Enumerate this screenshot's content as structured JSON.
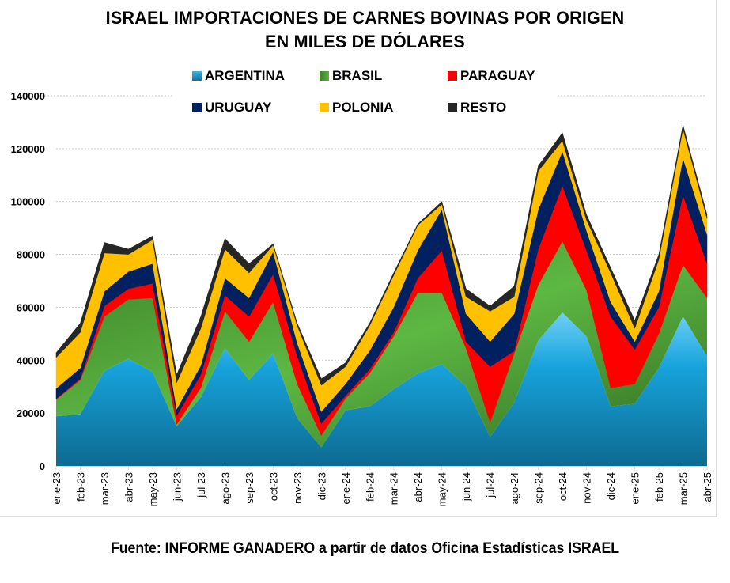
{
  "chart_data": {
    "type": "area",
    "stacked": true,
    "title": "ISRAEL IMPORTACIONES DE CARNES BOVINAS POR ORIGEN",
    "subtitle": "EN MILES DE DÓLARES",
    "xlabel": "",
    "ylabel": "",
    "ylim": [
      0,
      140000
    ],
    "yticks": [
      0,
      20000,
      40000,
      60000,
      80000,
      100000,
      120000,
      140000
    ],
    "ytick_labels": [
      "0",
      "20000",
      "40000",
      "60000",
      "80000",
      "100000",
      "120000",
      "140000"
    ],
    "grid": true,
    "legend_position": "top",
    "categories": [
      "ene-23",
      "feb-23",
      "mar-23",
      "abr-23",
      "may-23",
      "jun-23",
      "jul-23",
      "ago-23",
      "sep-23",
      "oct-23",
      "nov-23",
      "dic-23",
      "ene-24",
      "feb-24",
      "mar-24",
      "abr-24",
      "may-24",
      "jun-24",
      "jul-24",
      "ago-24",
      "sep-24",
      "oct-24",
      "nov-24",
      "dic-24",
      "ene-25",
      "feb-25",
      "mar-25",
      "abr-25"
    ],
    "series": [
      {
        "name": "ARGENTINA",
        "color": "#1ba1d9",
        "values": [
          18800,
          19500,
          36000,
          40500,
          35500,
          15000,
          26000,
          44500,
          32500,
          42500,
          18000,
          7000,
          21000,
          22500,
          29000,
          35000,
          38500,
          30000,
          11000,
          24000,
          47500,
          58000,
          49000,
          22500,
          23500,
          37000,
          56500,
          41500
        ]
      },
      {
        "name": "BRASIL",
        "color": "#4aa832",
        "values": [
          6300,
          13000,
          20500,
          22500,
          28000,
          700,
          3500,
          14000,
          14500,
          19500,
          13000,
          4500,
          4500,
          12500,
          20000,
          30500,
          27000,
          14500,
          5500,
          18500,
          21000,
          27000,
          17500,
          7000,
          7500,
          13000,
          19500,
          22000
        ]
      },
      {
        "name": "PARAGUAY",
        "color": "#ff0000",
        "values": [
          300,
          500,
          4000,
          4000,
          5500,
          3300,
          5000,
          6000,
          9500,
          10500,
          10500,
          4500,
          1000,
          1500,
          1500,
          5500,
          16000,
          2500,
          21000,
          1000,
          13500,
          21000,
          15000,
          27000,
          13000,
          10000,
          26500,
          13000
        ]
      },
      {
        "name": "URUGUAY",
        "color": "#002060",
        "values": [
          3900,
          4000,
          5500,
          6500,
          7500,
          2500,
          3500,
          6500,
          7000,
          8500,
          5000,
          4500,
          4500,
          7000,
          9500,
          10500,
          15500,
          10500,
          9500,
          14000,
          15000,
          13000,
          7500,
          5500,
          3000,
          6000,
          14000,
          11000
        ]
      },
      {
        "name": "POLONIA",
        "color": "#ffc000",
        "values": [
          11700,
          13500,
          14500,
          6500,
          9000,
          10000,
          14000,
          11000,
          9500,
          2500,
          6500,
          10000,
          6500,
          9500,
          12000,
          9500,
          2000,
          6500,
          11500,
          6500,
          14500,
          4000,
          4000,
          11000,
          5000,
          12000,
          11000,
          6000
        ]
      },
      {
        "name": "RESTO",
        "color": "#262626",
        "values": [
          1800,
          3500,
          4000,
          2000,
          1500,
          3000,
          4500,
          4000,
          3500,
          500,
          1000,
          2500,
          1500,
          1000,
          1000,
          500,
          1000,
          3000,
          2000,
          4000,
          2000,
          3000,
          2000,
          2000,
          3000,
          2000,
          1500,
          1500
        ]
      }
    ]
  },
  "source": "Fuente: INFORME GANADERO a partir de datos Oficina Estadísticas ISRAEL"
}
